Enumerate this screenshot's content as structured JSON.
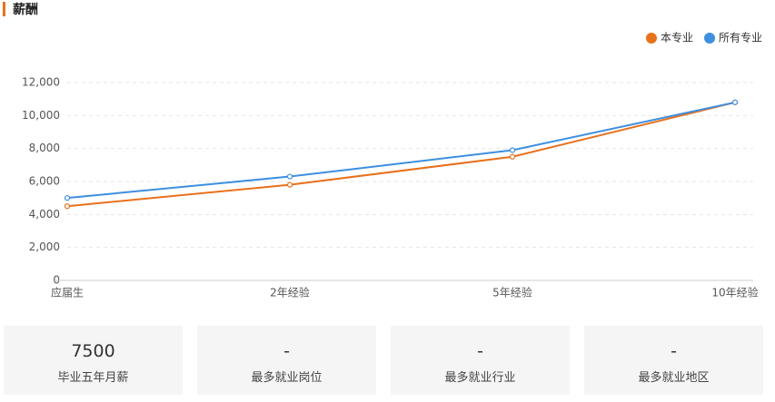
{
  "chart_data": {
    "type": "line",
    "title": "薪酬",
    "categories": [
      "应届生",
      "2年经验",
      "5年经验",
      "10年经验"
    ],
    "series": [
      {
        "name": "本专业",
        "color": "#e8711c",
        "values": [
          4500,
          5800,
          7500,
          10800
        ]
      },
      {
        "name": "所有专业",
        "color": "#3d8fe0",
        "values": [
          5000,
          6300,
          7900,
          10800
        ]
      }
    ],
    "ylim": [
      0,
      12000
    ],
    "yticks": [
      0,
      {
        "value": 2000,
        "label": "2,000"
      },
      {
        "value": 4000,
        "label": "4,000"
      },
      {
        "value": 6000,
        "label": "6,000"
      },
      {
        "value": 8000,
        "label": "8,000"
      },
      {
        "value": 10000,
        "label": "10,000"
      },
      {
        "value": 12000,
        "label": "12,000"
      }
    ],
    "grid": true,
    "legend": "top-right"
  },
  "cards": [
    {
      "value": 7500,
      "label": "毕业五年月薪"
    },
    {
      "value": "-",
      "label": "最多就业岗位"
    },
    {
      "value": "-",
      "label": "最多就业行业"
    },
    {
      "value": "-",
      "label": "最多就业地区"
    }
  ]
}
